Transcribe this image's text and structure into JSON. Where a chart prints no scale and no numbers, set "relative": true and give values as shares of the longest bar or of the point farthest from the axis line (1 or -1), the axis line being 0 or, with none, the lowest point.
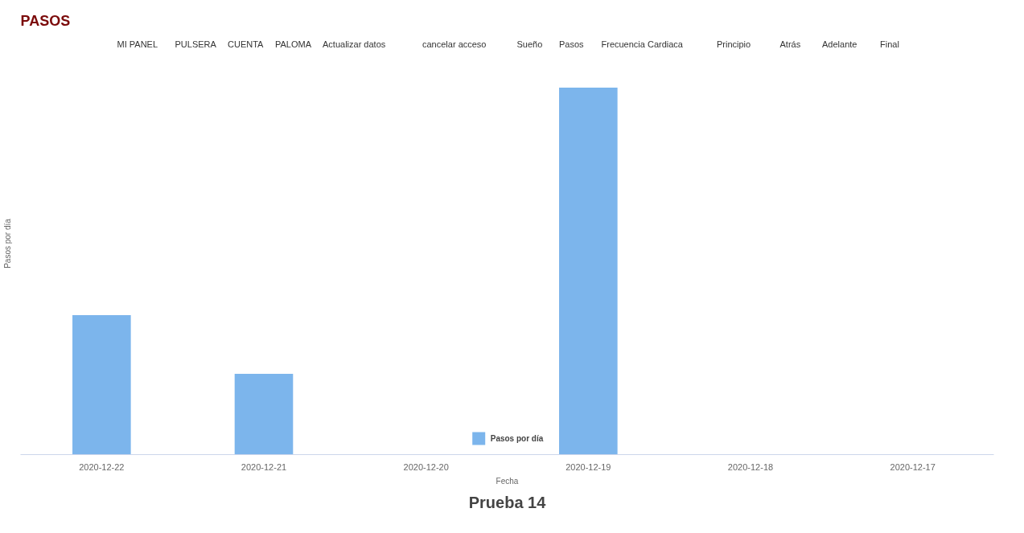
{
  "chart_data": {
    "type": "bar",
    "title": "PASOS",
    "xlabel": "Fecha",
    "ylabel": "Pasos por día",
    "relative": true,
    "categories": [
      "2020-12-22",
      "2020-12-21",
      "2020-12-20",
      "2020-12-19",
      "2020-12-18",
      "2020-12-17"
    ],
    "series": [
      {
        "name": "Pasos por día",
        "color": "#7cb5ec",
        "values": [
          0.38,
          0.22,
          0,
          1,
          0,
          0
        ]
      }
    ],
    "legend": "bottom",
    "grid": false,
    "annotations": [
      "MI PANEL",
      "PULSERA",
      "CUENTA",
      "PALOMA",
      "Actualizar datos",
      "cancelar acceso",
      "Sueño",
      "Pasos",
      "Frecuencia Cardiaca",
      "Principio",
      "Atrás",
      "Adelante",
      "Final",
      "Prueba 14"
    ]
  }
}
